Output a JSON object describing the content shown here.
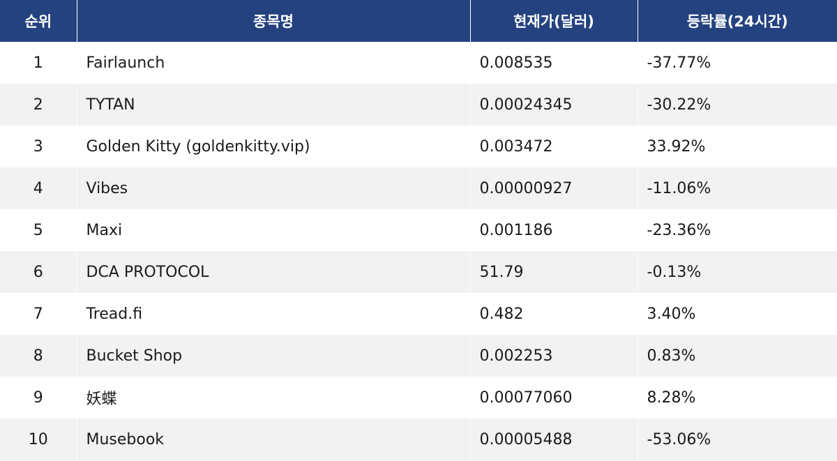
{
  "table": {
    "headers": [
      "순위",
      "종목명",
      "현재가(달러)",
      "등락률(24시간)"
    ],
    "rows": [
      {
        "rank": "1",
        "name": "Fairlaunch",
        "price": "0.008535",
        "change": "-37.77%"
      },
      {
        "rank": "2",
        "name": "TYTAN",
        "price": "0.00024345",
        "change": "-30.22%"
      },
      {
        "rank": "3",
        "name": "Golden Kitty (goldenkitty.vip)",
        "price": "0.003472",
        "change": "33.92%"
      },
      {
        "rank": "4",
        "name": "Vibes",
        "price": "0.00000927",
        "change": "-11.06%"
      },
      {
        "rank": "5",
        "name": "Maxi",
        "price": "0.001186",
        "change": "-23.36%"
      },
      {
        "rank": "6",
        "name": "DCA PROTOCOL",
        "price": "51.79",
        "change": "-0.13%"
      },
      {
        "rank": "7",
        "name": "Tread.fi",
        "price": "0.482",
        "change": "3.40%"
      },
      {
        "rank": "8",
        "name": "Bucket Shop",
        "price": "0.002253",
        "change": "0.83%"
      },
      {
        "rank": "9",
        "name": "妖蝶",
        "price": "0.00077060",
        "change": "8.28%"
      },
      {
        "rank": "10",
        "name": "Musebook",
        "price": "0.00005488",
        "change": "-53.06%"
      }
    ]
  },
  "colors": {
    "header_bg": "#24427f",
    "header_text": "#ffffff",
    "row_alt_bg": "#f2f2f2",
    "row_bg": "#ffffff"
  }
}
